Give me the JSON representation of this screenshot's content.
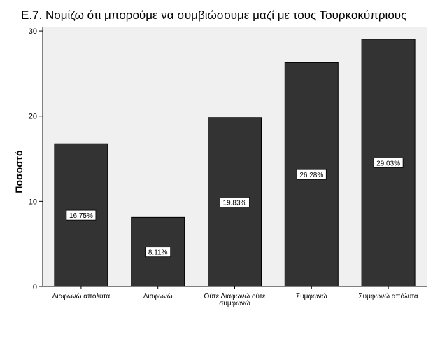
{
  "chart_data": {
    "type": "bar",
    "title": "Ε.7. Νομίζω ότι μπορούμε να συμβιώσουμε μαζί με τους Τουρκοκύπριους",
    "xlabel": "",
    "ylabel": "Ποσοστό",
    "categories": [
      [
        "Διαφωνώ απόλυτα"
      ],
      [
        "Διαφωνώ"
      ],
      [
        "Ούτε Διαφωνώ ούτε",
        "συμφωνώ"
      ],
      [
        "Συμφωνώ"
      ],
      [
        "Συμφωνώ απόλυτα"
      ]
    ],
    "values": [
      16.75,
      8.11,
      19.83,
      26.28,
      29.03
    ],
    "data_labels": [
      "16.75%",
      "8.11%",
      "19.83%",
      "26.28%",
      "29.03%"
    ],
    "yticks": [
      "0",
      "10",
      "20",
      "30"
    ],
    "ytick_values": [
      0,
      10,
      20,
      30
    ],
    "ylim": [
      0,
      30.5
    ],
    "grid": false,
    "colors": {
      "bar": "#333333",
      "plot_background": "#f0f0f0",
      "axis": "#000000",
      "label_box": "#ffffff"
    }
  }
}
